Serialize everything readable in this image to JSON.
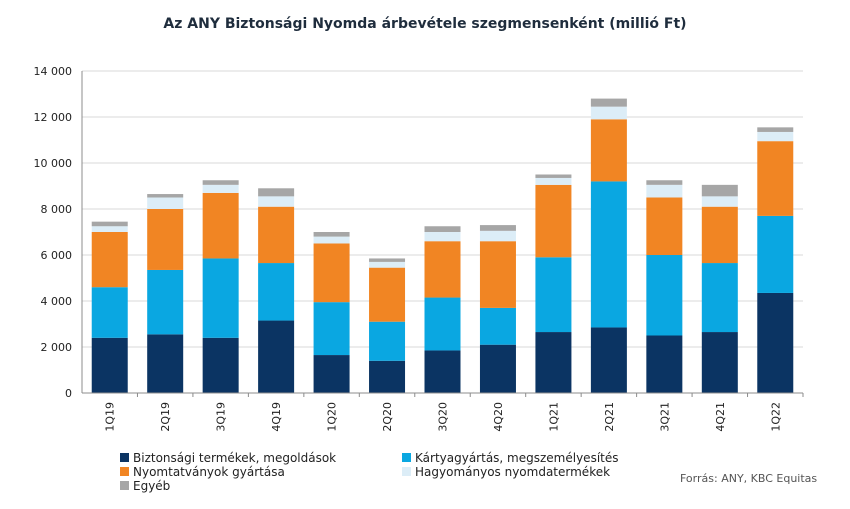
{
  "chart_data": {
    "type": "bar",
    "stacked": true,
    "title": "Az ANY Biztonsági Nyomda árbevétele szegmensenként (millió Ft)",
    "categories": [
      "1Q19",
      "2Q19",
      "3Q19",
      "4Q19",
      "1Q20",
      "2Q20",
      "3Q20",
      "4Q20",
      "1Q21",
      "2Q21",
      "3Q21",
      "4Q21",
      "1Q22"
    ],
    "ylim": [
      0,
      14000
    ],
    "yticks": [
      0,
      2000,
      4000,
      6000,
      8000,
      10000,
      12000,
      14000
    ],
    "ytick_labels": [
      "0",
      "2 000",
      "4 000",
      "6 000",
      "8 000",
      "10 000",
      "12 000",
      "14 000"
    ],
    "grid": true,
    "legend_position": "bottom-left",
    "series": [
      {
        "name": "Biztonsági termékek, megoldások",
        "color": "#0b3463",
        "values": [
          2400,
          2550,
          2400,
          3150,
          1650,
          1400,
          1850,
          2100,
          2650,
          2850,
          2500,
          2650,
          4350
        ]
      },
      {
        "name": "Kártyagyártás, megszemélyesítés",
        "color": "#0aa7e1",
        "values": [
          2200,
          2800,
          3450,
          2500,
          2300,
          1700,
          2300,
          1600,
          3250,
          6350,
          3500,
          3000,
          3350
        ]
      },
      {
        "name": "Nyomtatványok gyártása",
        "color": "#f18523",
        "values": [
          2400,
          2650,
          2850,
          2450,
          2550,
          2350,
          2450,
          2900,
          3150,
          2700,
          2500,
          2450,
          3250
        ]
      },
      {
        "name": "Hagyományos nyomdatermékek",
        "color": "#dcedf7",
        "values": [
          250,
          500,
          350,
          450,
          300,
          250,
          400,
          450,
          300,
          550,
          550,
          450,
          400
        ]
      },
      {
        "name": "Egyéb",
        "color": "#a6a6a6",
        "values": [
          200,
          150,
          200,
          350,
          200,
          150,
          250,
          250,
          150,
          350,
          200,
          500,
          200
        ]
      }
    ]
  },
  "source_text": "Forrás: ANY, KBC Equitas"
}
